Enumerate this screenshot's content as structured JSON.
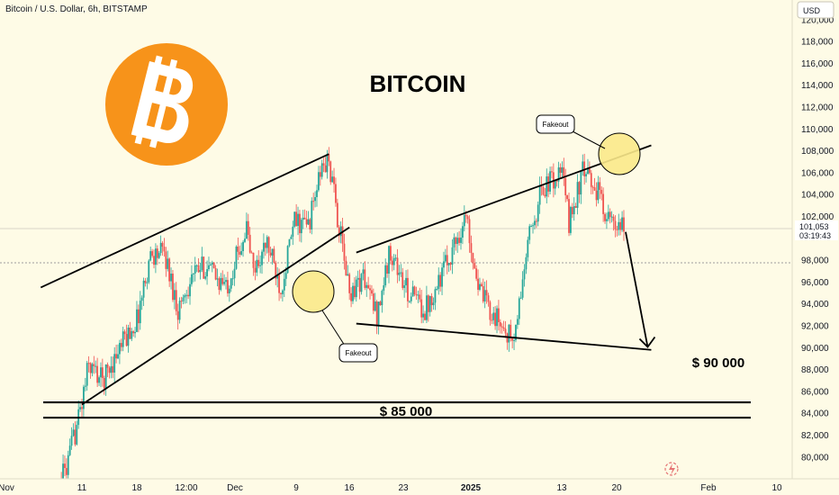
{
  "header": {
    "symbol_title": "Bitcoin / U.S. Dollar, 6h, BITSTAMP"
  },
  "chart_title": "BITCOIN",
  "currency_badge": "USD",
  "price_label": {
    "price": "101,053",
    "countdown": "03:19:43"
  },
  "annotations": {
    "fakeout_top": "Fakeout",
    "fakeout_bottom": "Fakeout",
    "target_90k": "$ 90 000",
    "support_85k": "$ 85 000"
  },
  "colors": {
    "background": "#fefbe6",
    "up_candle": "#26a69a",
    "down_candle": "#ef5350",
    "bitcoin_orange": "#f7931a",
    "highlight_circle": "#fbe98a"
  },
  "icons": [
    "bitcoin-logo-icon",
    "tradingview-watermark-icon"
  ],
  "chart_data": {
    "type": "candlestick",
    "title": "BITCOIN",
    "subtitle": "Bitcoin / U.S. Dollar, 6h, BITSTAMP",
    "y_unit": "USD",
    "y_ticks": [
      80000,
      82000,
      84000,
      86000,
      88000,
      90000,
      92000,
      94000,
      96000,
      98000,
      100000,
      102000,
      104000,
      106000,
      108000,
      110000,
      112000,
      114000,
      116000,
      118000,
      120000
    ],
    "y_tick_labels": [
      "80,000",
      "82,000",
      "84,000",
      "86,000",
      "88,000",
      "90,000",
      "92,000",
      "94,000",
      "96,000",
      "98,000",
      "100,000",
      "102,000",
      "104,000",
      "106,000",
      "108,000",
      "110,000",
      "112,000",
      "114,000",
      "116,000",
      "118,000",
      "120,000"
    ],
    "ylim": [
      79000,
      121000
    ],
    "x_ticks": [
      "Nov",
      "11",
      "18",
      "12:00",
      "Dec",
      "9",
      "16",
      "23",
      "2025",
      "13",
      "20",
      "Feb",
      "10"
    ],
    "last_price": 101053,
    "price_path": [
      [
        "2024-11-06",
        75000
      ],
      [
        "2024-11-09",
        79500
      ],
      [
        "2024-11-11",
        85000
      ],
      [
        "2024-11-12",
        88500
      ],
      [
        "2024-11-14",
        87000
      ],
      [
        "2024-11-17",
        90500
      ],
      [
        "2024-11-19",
        92500
      ],
      [
        "2024-11-21",
        98500
      ],
      [
        "2024-11-23",
        98700
      ],
      [
        "2024-11-25",
        93500
      ],
      [
        "2024-11-27",
        96500
      ],
      [
        "2024-11-29",
        97500
      ],
      [
        "2024-12-02",
        95500
      ],
      [
        "2024-12-05",
        101000
      ],
      [
        "2024-12-06",
        97000
      ],
      [
        "2024-12-08",
        99500
      ],
      [
        "2024-12-10",
        95500
      ],
      [
        "2024-12-12",
        101500
      ],
      [
        "2024-12-14",
        101200
      ],
      [
        "2024-12-16",
        106500
      ],
      [
        "2024-12-17",
        107000
      ],
      [
        "2024-12-19",
        99000
      ],
      [
        "2024-12-20",
        95000
      ],
      [
        "2024-12-22",
        96500
      ],
      [
        "2024-12-24",
        93000
      ],
      [
        "2024-12-26",
        99000
      ],
      [
        "2024-12-28",
        95500
      ],
      [
        "2024-12-31",
        93500
      ],
      [
        "2025-01-03",
        97500
      ],
      [
        "2025-01-06",
        102000
      ],
      [
        "2025-01-08",
        95000
      ],
      [
        "2025-01-10",
        93000
      ],
      [
        "2025-01-13",
        90500
      ],
      [
        "2025-01-15",
        99500
      ],
      [
        "2025-01-17",
        104500
      ],
      [
        "2025-01-20",
        106000
      ],
      [
        "2025-01-21",
        101500
      ],
      [
        "2025-01-23",
        106000
      ],
      [
        "2025-01-25",
        104500
      ],
      [
        "2025-01-27",
        101500
      ],
      [
        "2025-01-28",
        100500
      ],
      [
        "2025-01-29",
        101053
      ]
    ],
    "drawings": {
      "rising_channel_upper": [
        [
          "2024-11-05",
          95500
        ],
        [
          "2024-12-17",
          107700
        ]
      ],
      "rising_channel_lower": [
        [
          "2024-11-11",
          84800
        ],
        [
          "2024-12-20",
          101000
        ]
      ],
      "broadening_upper": [
        [
          "2024-12-21",
          98700
        ],
        [
          "2025-02-02",
          108500
        ]
      ],
      "broadening_lower": [
        [
          "2024-12-21",
          92200
        ],
        [
          "2025-02-02",
          89800
        ]
      ],
      "support_lines": [
        85000,
        83600
      ],
      "projection_arrow": [
        [
          "2025-01-29",
          101000
        ],
        [
          "2025-02-02",
          89900
        ]
      ],
      "target_price": 90000,
      "support_price": 85000
    }
  }
}
